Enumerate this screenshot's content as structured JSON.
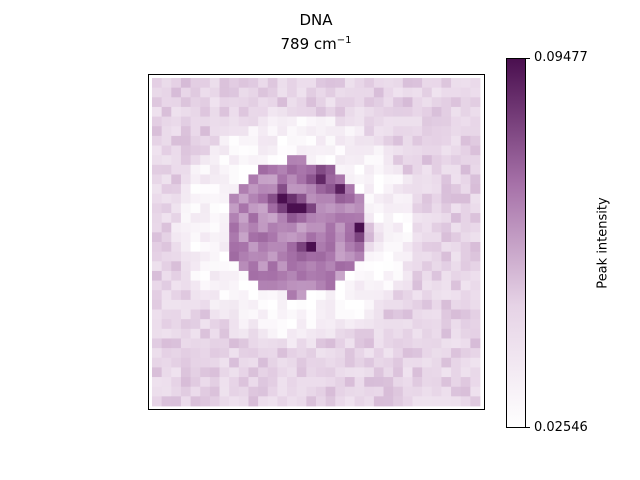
{
  "chart_data": {
    "type": "heatmap",
    "title": "DNA",
    "subtitle_base": "789 cm",
    "subtitle_exp": "−1",
    "xlabel": "",
    "ylabel": "",
    "grid": false,
    "colorbar": {
      "label": "Peak intensity",
      "min": 0.02546,
      "max": 0.09477,
      "min_label": "0.02546",
      "max_label": "0.09477",
      "colormap": "white-to-purple",
      "color_low": "#ffffff",
      "color_high": "#4a0f4f"
    },
    "grid_size": [
      34,
      34
    ],
    "image_description_values": {
      "background_level": 0.047,
      "ring_level": 0.029,
      "nucleus_level": 0.066,
      "hotspot_level": 0.092
    }
  }
}
